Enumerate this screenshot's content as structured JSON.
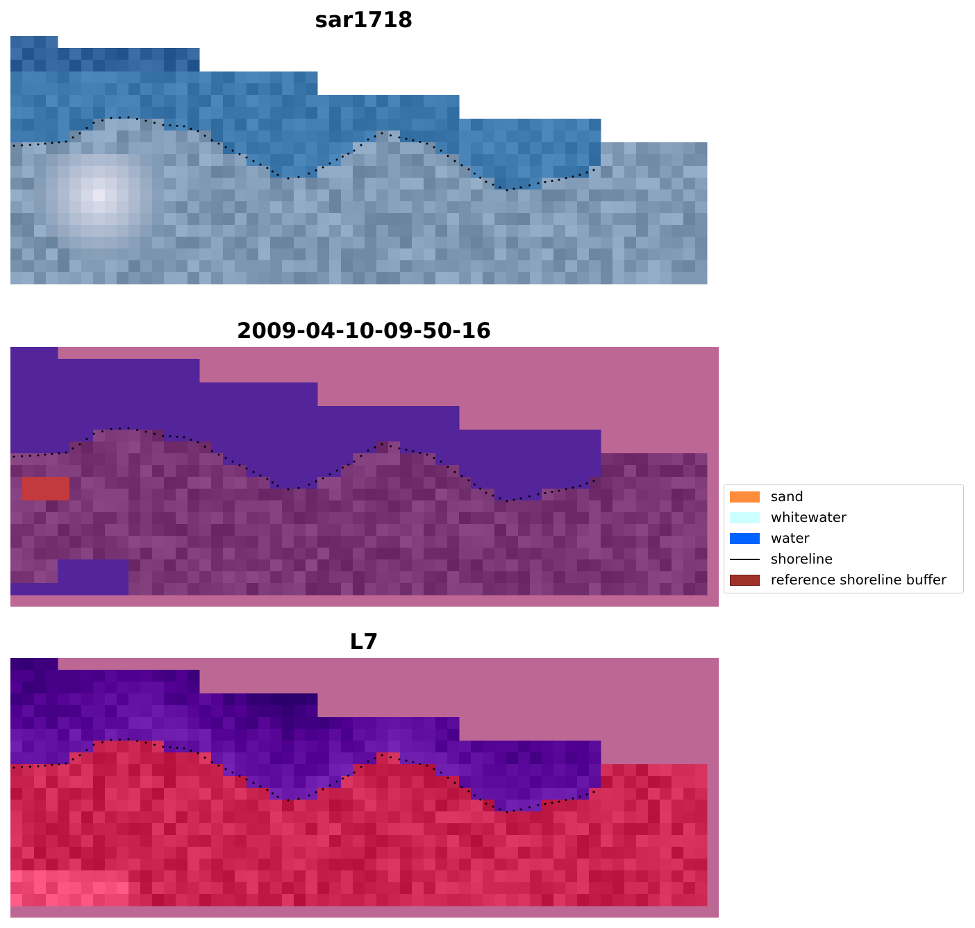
{
  "panels": [
    {
      "title": "sar1718",
      "kind": "rgb"
    },
    {
      "title": "2009-04-10-09-50-16",
      "kind": "classified"
    },
    {
      "title": "L7",
      "kind": "index"
    }
  ],
  "legend": {
    "items": [
      {
        "label": "sand",
        "type": "patch",
        "color": "#ff8c3a"
      },
      {
        "label": "whitewater",
        "type": "patch",
        "color": "#ccffff"
      },
      {
        "label": "water",
        "type": "patch",
        "color": "#0062ff"
      },
      {
        "label": "shoreline",
        "type": "line",
        "color": "#000000"
      },
      {
        "label": "reference shoreline buffer",
        "type": "patch",
        "color": "#a0302a"
      }
    ]
  },
  "colors": {
    "rgb_water_deep": "#2e5f98",
    "rgb_water": "#3f7aae",
    "rgb_land": "#7f98b4",
    "rgb_cloud": "#e8e6f2",
    "class_water": "#53249a",
    "class_land": "#7a3575",
    "class_nodata": "#bd6795",
    "class_buffer": "#c33a3e",
    "index_water": "#5c0b9c",
    "index_land": "#c8244f",
    "index_nodata": "#bd6795",
    "shoreline": "#000000"
  }
}
